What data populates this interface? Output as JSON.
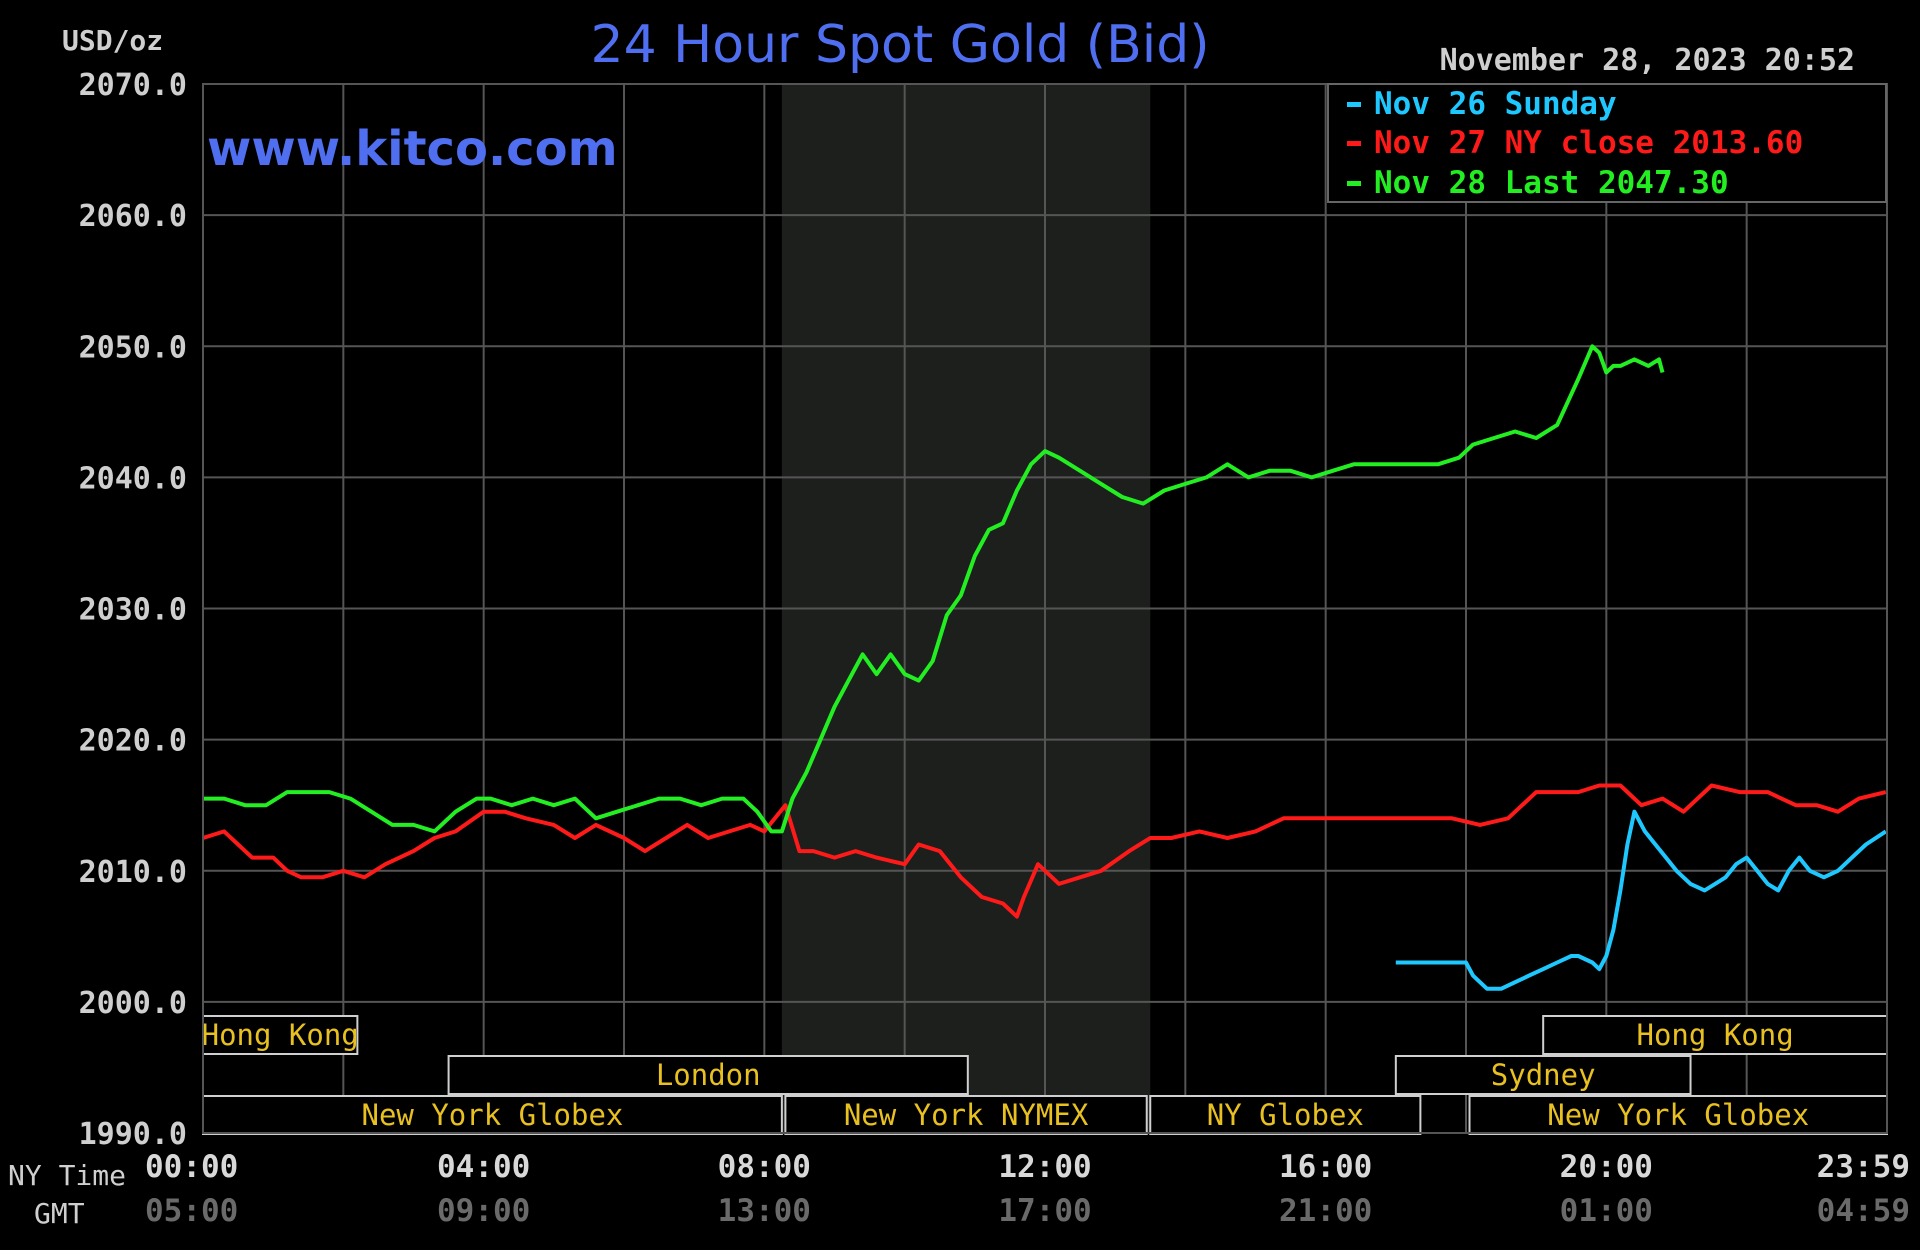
{
  "chart_data": {
    "type": "line",
    "title": "24 Hour Spot Gold (Bid)",
    "unit_label": "USD/oz",
    "watermark": "www.kitco.com",
    "timestamp": "November 28, 2023 20:52",
    "ylim": [
      1990,
      2070
    ],
    "y_ticks": [
      1990,
      2000,
      2010,
      2020,
      2030,
      2040,
      2050,
      2060,
      2070
    ],
    "y_tick_labels": [
      "1990.0",
      "2000.0",
      "2010.0",
      "2020.0",
      "2030.0",
      "2040.0",
      "2050.0",
      "2060.0",
      "2070.0"
    ],
    "xlim": [
      0,
      24
    ],
    "x_ticks": [
      0,
      4,
      8,
      12,
      16,
      20,
      23.983
    ],
    "x_tick_labels_ny": [
      "00:00",
      "04:00",
      "08:00",
      "12:00",
      "16:00",
      "20:00",
      "23:59"
    ],
    "x_tick_labels_gmt": [
      "05:00",
      "09:00",
      "13:00",
      "17:00",
      "21:00",
      "01:00",
      "04:59"
    ],
    "x_row_label_ny": "NY Time",
    "x_row_label_gmt": "GMT",
    "grid": true,
    "legend_position": "top-right",
    "legend": [
      {
        "text": "Nov 26 Sunday",
        "color": "#1ec8ff"
      },
      {
        "text": "Nov 27 NY close 2013.60",
        "color": "#ff1a1a"
      },
      {
        "text": "Nov 28 Last 2047.30",
        "color": "#22ee22"
      }
    ],
    "highlight_band": [
      8.25,
      13.5
    ],
    "series": [
      {
        "color": "#1ec8ff",
        "x": [
          17.0,
          17.3,
          17.5,
          17.8,
          18.0,
          18.1,
          18.2,
          18.3,
          18.5,
          18.7,
          18.9,
          19.1,
          19.3,
          19.5,
          19.6,
          19.8,
          19.9,
          20.0,
          20.1,
          20.2,
          20.3,
          20.4,
          20.45,
          20.55,
          20.7,
          20.85,
          21.0,
          21.2,
          21.4,
          21.55,
          21.7,
          21.85,
          22.0,
          22.15,
          22.3,
          22.45,
          22.6,
          22.75,
          22.9,
          23.1,
          23.3,
          23.5,
          23.7,
          23.983
        ],
        "y": [
          2003.0,
          2003.0,
          2003.0,
          2003.0,
          2003.0,
          2002.0,
          2001.5,
          2001.0,
          2001.0,
          2001.5,
          2002.0,
          2002.5,
          2003.0,
          2003.5,
          2003.5,
          2003.0,
          2002.5,
          2003.5,
          2005.5,
          2008.5,
          2012.0,
          2014.5,
          2014.0,
          2013.0,
          2012.0,
          2011.0,
          2010.0,
          2009.0,
          2008.5,
          2009.0,
          2009.5,
          2010.5,
          2011.0,
          2010.0,
          2009.0,
          2008.5,
          2010.0,
          2011.0,
          2010.0,
          2009.5,
          2010.0,
          2011.0,
          2012.0,
          2013.0
        ]
      },
      {
        "color": "#ff1a1a",
        "x": [
          0.0,
          0.3,
          0.5,
          0.7,
          1.0,
          1.2,
          1.4,
          1.7,
          2.0,
          2.3,
          2.6,
          3.0,
          3.3,
          3.6,
          4.0,
          4.3,
          4.6,
          5.0,
          5.3,
          5.6,
          6.0,
          6.3,
          6.6,
          6.9,
          7.2,
          7.5,
          7.8,
          8.0,
          8.3,
          8.5,
          8.7,
          9.0,
          9.3,
          9.6,
          10.0,
          10.2,
          10.5,
          10.8,
          11.1,
          11.4,
          11.6,
          11.7,
          11.9,
          12.2,
          12.5,
          12.8,
          13.2,
          13.5,
          13.8,
          14.2,
          14.6,
          15.0,
          15.4,
          15.8,
          16.2,
          16.6,
          17.0,
          17.4,
          17.8,
          18.2,
          18.6,
          19.0,
          19.3,
          19.6,
          19.9,
          20.2,
          20.5,
          20.8,
          21.1,
          21.5,
          21.9,
          22.3,
          22.7,
          23.0,
          23.3,
          23.6,
          23.983
        ],
        "y": [
          2012.5,
          2013.0,
          2012.0,
          2011.0,
          2011.0,
          2010.0,
          2009.5,
          2009.5,
          2010.0,
          2009.5,
          2010.5,
          2011.5,
          2012.5,
          2013.0,
          2014.5,
          2014.5,
          2014.0,
          2013.5,
          2012.5,
          2013.5,
          2012.5,
          2011.5,
          2012.5,
          2013.5,
          2012.5,
          2013.0,
          2013.5,
          2013.0,
          2015.0,
          2011.5,
          2011.5,
          2011.0,
          2011.5,
          2011.0,
          2010.5,
          2012.0,
          2011.5,
          2009.5,
          2008.0,
          2007.5,
          2006.5,
          2008.0,
          2010.5,
          2009.0,
          2009.5,
          2010.0,
          2011.5,
          2012.5,
          2012.5,
          2013.0,
          2012.5,
          2013.0,
          2014.0,
          2014.0,
          2014.0,
          2014.0,
          2014.0,
          2014.0,
          2014.0,
          2013.5,
          2014.0,
          2016.0,
          2016.0,
          2016.0,
          2016.5,
          2016.5,
          2015.0,
          2015.5,
          2014.5,
          2016.5,
          2016.0,
          2016.0,
          2015.0,
          2015.0,
          2014.5,
          2015.5,
          2016.0
        ]
      },
      {
        "color": "#22ee22",
        "x": [
          0.0,
          0.3,
          0.6,
          0.9,
          1.2,
          1.5,
          1.8,
          2.1,
          2.4,
          2.7,
          3.0,
          3.3,
          3.6,
          3.9,
          4.1,
          4.4,
          4.7,
          5.0,
          5.3,
          5.6,
          5.9,
          6.2,
          6.5,
          6.8,
          7.1,
          7.4,
          7.7,
          7.9,
          8.1,
          8.25,
          8.4,
          8.6,
          8.8,
          9.0,
          9.2,
          9.4,
          9.6,
          9.8,
          10.0,
          10.2,
          10.4,
          10.6,
          10.8,
          11.0,
          11.2,
          11.4,
          11.6,
          11.8,
          12.0,
          12.2,
          12.5,
          12.8,
          13.1,
          13.4,
          13.7,
          14.0,
          14.3,
          14.6,
          14.9,
          15.2,
          15.5,
          15.8,
          16.1,
          16.4,
          16.7,
          17.0,
          17.3,
          17.6,
          17.9,
          18.1,
          18.4,
          18.7,
          19.0,
          19.3,
          19.6,
          19.8,
          19.9,
          20.0,
          20.1,
          20.2,
          20.4,
          20.6,
          20.75,
          20.8
        ],
        "y": [
          2015.5,
          2015.5,
          2015.0,
          2015.0,
          2016.0,
          2016.0,
          2016.0,
          2015.5,
          2014.5,
          2013.5,
          2013.5,
          2013.0,
          2014.5,
          2015.5,
          2015.5,
          2015.0,
          2015.5,
          2015.0,
          2015.5,
          2014.0,
          2014.5,
          2015.0,
          2015.5,
          2015.5,
          2015.0,
          2015.5,
          2015.5,
          2014.5,
          2013.0,
          2013.0,
          2015.5,
          2017.5,
          2020.0,
          2022.5,
          2024.5,
          2026.5,
          2025.0,
          2026.5,
          2025.0,
          2024.5,
          2026.0,
          2029.5,
          2031.0,
          2034.0,
          2036.0,
          2036.5,
          2039.0,
          2041.0,
          2042.0,
          2041.5,
          2040.5,
          2039.5,
          2038.5,
          2038.0,
          2039.0,
          2039.5,
          2040.0,
          2041.0,
          2040.0,
          2040.5,
          2040.5,
          2040.0,
          2040.5,
          2041.0,
          2041.0,
          2041.0,
          2041.0,
          2041.0,
          2041.5,
          2042.5,
          2043.0,
          2043.5,
          2043.0,
          2044.0,
          2047.5,
          2050.0,
          2049.5,
          2048.0,
          2048.5,
          2048.5,
          2049.0,
          2048.5,
          2049.0,
          2048.0
        ]
      }
    ],
    "sessions": [
      {
        "label": "Hong Kong",
        "row": 0,
        "start": -1,
        "end": 2.2
      },
      {
        "label": "Hong Kong",
        "row": 0,
        "start": 19.1,
        "end": 25
      },
      {
        "label": "London",
        "row": 1,
        "start": 3.5,
        "end": 10.9
      },
      {
        "label": "Sydney",
        "row": 1,
        "start": 17.0,
        "end": 21.2
      },
      {
        "label": "New York Globex",
        "row": 2,
        "start": -1,
        "end": 8.25
      },
      {
        "label": "New York NYMEX",
        "row": 2,
        "start": 8.3,
        "end": 13.45
      },
      {
        "label": "NY Globex",
        "row": 2,
        "start": 13.5,
        "end": 17.35
      },
      {
        "label": "New York Globex",
        "row": 2,
        "start": 18.05,
        "end": 25
      }
    ]
  }
}
